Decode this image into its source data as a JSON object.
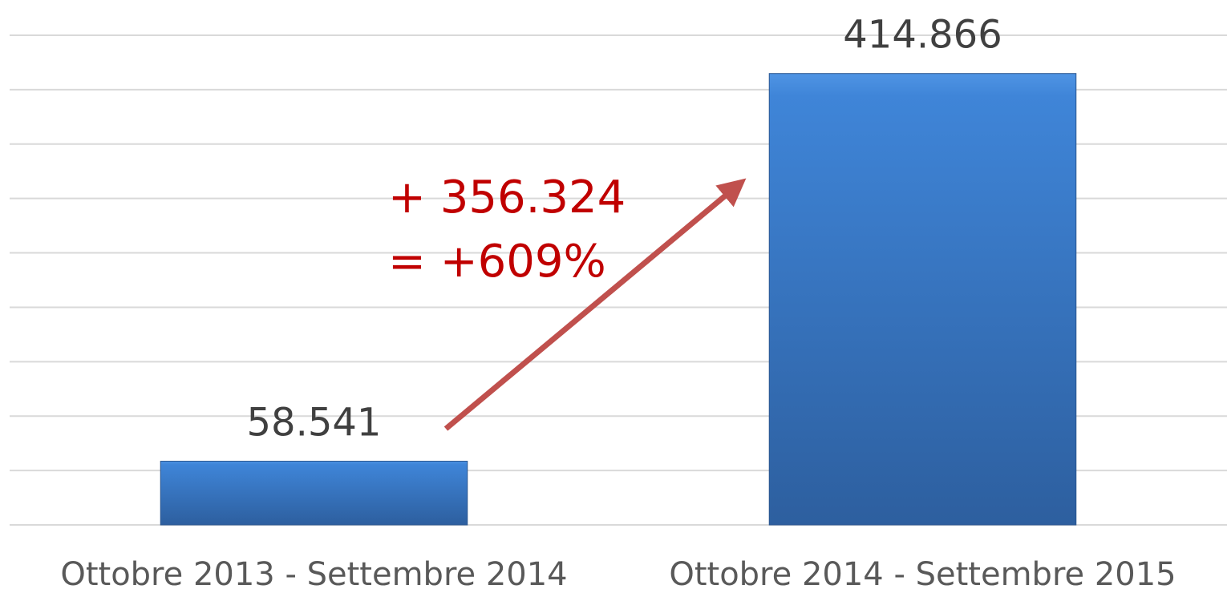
{
  "chart_data": {
    "type": "bar",
    "categories": [
      "Ottobre 2013 - Settembre 2014",
      "Ottobre 2014 - Settembre 2015"
    ],
    "values": [
      58541,
      414866
    ],
    "value_labels": [
      "58.541",
      "414.866"
    ],
    "color": "#3a78c8",
    "ylim": [
      0,
      450000
    ],
    "yticks": [
      0,
      50000,
      100000,
      150000,
      200000,
      250000,
      300000,
      350000,
      400000,
      450000
    ],
    "grid": true,
    "annotations": [
      "+ 356.324",
      "= +609%"
    ]
  }
}
